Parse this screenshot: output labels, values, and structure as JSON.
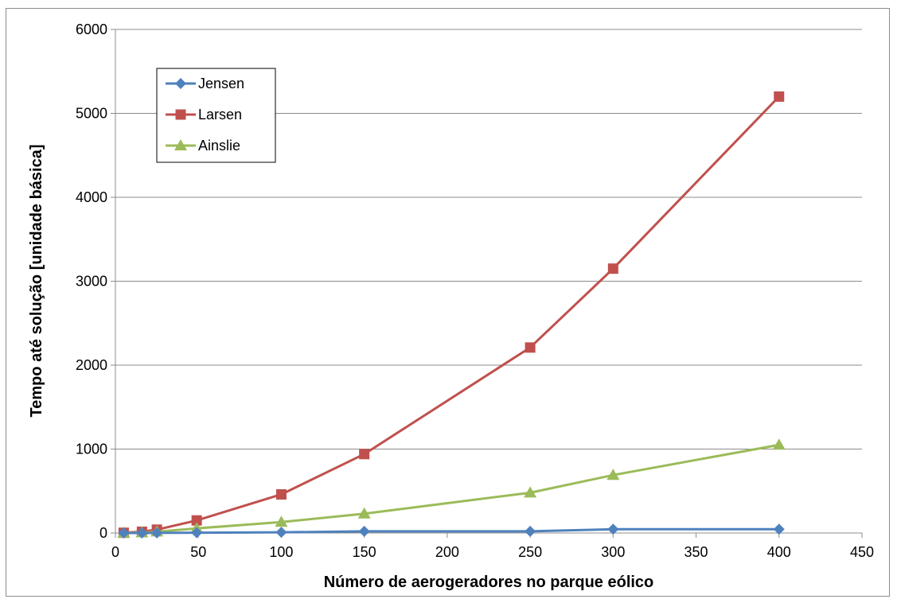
{
  "chart_data": {
    "type": "line",
    "xlabel": "Número de aerogeradores no parque eólico",
    "ylabel": "Tempo até solução [unidade básica]",
    "xlim": [
      0,
      450
    ],
    "ylim": [
      0,
      6000
    ],
    "xticks": [
      "0",
      "50",
      "100",
      "150",
      "200",
      "250",
      "300",
      "350",
      "400",
      "450"
    ],
    "yticks": [
      "0",
      "1000",
      "2000",
      "3000",
      "4000",
      "5000",
      "6000"
    ],
    "grid": "horizontal",
    "legend_position": "top-left",
    "series": [
      {
        "name": "Jensen",
        "color": "#4f81bd",
        "marker": "diamond",
        "x": [
          5,
          16,
          25,
          49,
          100,
          150,
          250,
          300,
          400
        ],
        "y": [
          0,
          0,
          1,
          3,
          8,
          20,
          20,
          45,
          45
        ]
      },
      {
        "name": "Larsen",
        "color": "#c0504d",
        "marker": "square",
        "x": [
          5,
          16,
          25,
          49,
          100,
          150,
          250,
          300,
          400
        ],
        "y": [
          3,
          15,
          40,
          150,
          460,
          940,
          2210,
          3150,
          5200
        ]
      },
      {
        "name": "Ainslie",
        "color": "#9bbb59",
        "marker": "triangle",
        "x": [
          5,
          16,
          25,
          49,
          100,
          150,
          250,
          300,
          400
        ],
        "y": [
          1,
          5,
          15,
          55,
          130,
          230,
          480,
          690,
          1050
        ]
      }
    ]
  }
}
